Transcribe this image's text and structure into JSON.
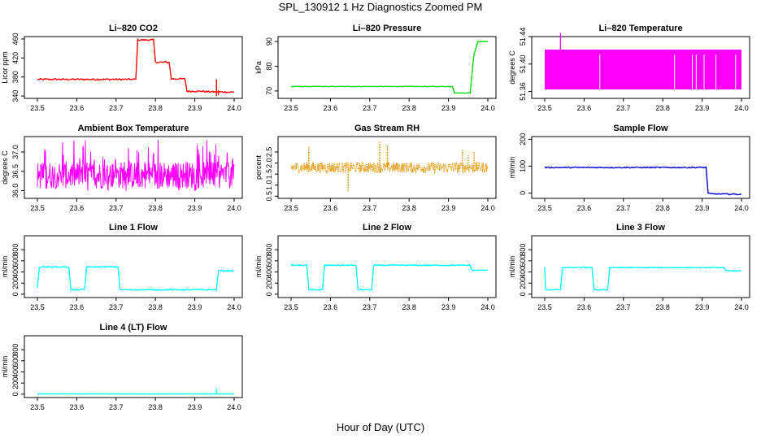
{
  "title": "SPL_130912  1 Hz Diagnostics Zoomed PM",
  "xlabel": "Hour of Day (UTC)",
  "chart_data": [
    {
      "type": "line",
      "title": "Li–820 CO2",
      "ylabel": "Licor ppm",
      "color": "#ff0000",
      "xlim": [
        23.5,
        24.0
      ],
      "ylim": [
        335,
        465
      ],
      "xticks": [
        "23.5",
        "23.6",
        "23.7",
        "23.8",
        "23.9",
        "24.0"
      ],
      "yticks": [
        "340",
        "380",
        "420",
        "460"
      ],
      "series": [
        {
          "x": [
            23.5,
            23.75,
            23.755,
            23.795,
            23.8,
            23.835,
            23.84,
            23.875,
            23.88,
            23.92,
            23.93,
            24.0
          ],
          "y": [
            375,
            375,
            458,
            458,
            411,
            411,
            376,
            376,
            350,
            350,
            349,
            348
          ]
        }
      ],
      "spikes": [
        {
          "x": 23.955,
          "y": [
            340,
            375
          ]
        },
        {
          "x": 23.96,
          "y": [
            352,
            342
          ]
        }
      ],
      "noise": 1.5
    },
    {
      "type": "line",
      "title": "Li–820 Pressure",
      "ylabel": "kPa",
      "color": "#00dd00",
      "xlim": [
        23.5,
        24.0
      ],
      "ylim": [
        67,
        92
      ],
      "xticks": [
        "23.5",
        "23.6",
        "23.7",
        "23.8",
        "23.9",
        "24.0"
      ],
      "yticks": [
        "70",
        "80",
        "90"
      ],
      "series": [
        {
          "x": [
            23.5,
            23.91,
            23.915,
            23.955,
            23.965,
            23.975,
            24.0
          ],
          "y": [
            71.8,
            71.8,
            69.2,
            69.2,
            85,
            90,
            90
          ]
        }
      ],
      "noise": 0.1
    },
    {
      "type": "band",
      "title": "Li–820 Temperature",
      "ylabel": "degrees C",
      "color": "#ff00ff",
      "xlim": [
        23.5,
        24.0
      ],
      "ylim": [
        51.35,
        51.44
      ],
      "xticks": [
        "23.5",
        "23.6",
        "23.7",
        "23.8",
        "23.9",
        "24.0"
      ],
      "yticks": [
        "51.36",
        "51.40",
        "51.44"
      ],
      "band": [
        51.363,
        51.421
      ],
      "spikes": [
        {
          "x": 23.54,
          "y": [
            51.42,
            51.445
          ]
        }
      ],
      "gaps": [
        23.64,
        23.83,
        23.875,
        23.885,
        23.905,
        23.935,
        23.985
      ]
    },
    {
      "type": "noise",
      "title": "Ambient Box Temperature",
      "ylabel": "degrees C",
      "color": "#ff00ff",
      "xlim": [
        23.5,
        24.0
      ],
      "ylim": [
        35.8,
        37.4
      ],
      "xticks": [
        "23.5",
        "23.6",
        "23.7",
        "23.8",
        "23.9",
        "24.0"
      ],
      "yticks": [
        "36.0",
        "36.5",
        "37.0"
      ],
      "range": [
        36.0,
        37.3
      ],
      "center": 36.4,
      "spread": 0.35
    },
    {
      "type": "dotted",
      "title": "Gas Stream RH",
      "ylabel": "percent",
      "color": "#e69500",
      "xlim": [
        23.5,
        24.0
      ],
      "ylim": [
        0.4,
        3.2
      ],
      "xticks": [
        "23.5",
        "23.6",
        "23.7",
        "23.8",
        "23.9",
        "24.0"
      ],
      "yticks": [
        "0.5",
        "1.0",
        "1.5",
        "2.0",
        "2.5"
      ],
      "center": 1.8,
      "spread": 0.25,
      "spikes": [
        {
          "x": 23.545,
          "y": 2.75
        },
        {
          "x": 23.645,
          "y": 0.7
        },
        {
          "x": 23.725,
          "y": 2.95
        },
        {
          "x": 23.745,
          "y": 2.8
        },
        {
          "x": 23.935,
          "y": 2.6
        },
        {
          "x": 23.95,
          "y": 2.35
        },
        {
          "x": 23.965,
          "y": 2.5
        }
      ]
    },
    {
      "type": "line",
      "title": "Sample Flow",
      "ylabel": "ml/min",
      "color": "#0000dd",
      "xlim": [
        23.5,
        24.0
      ],
      "ylim": [
        -20,
        210
      ],
      "xticks": [
        "23.5",
        "23.6",
        "23.7",
        "23.8",
        "23.9",
        "24.0"
      ],
      "yticks": [
        "0",
        "100",
        "200"
      ],
      "series": [
        {
          "x": [
            23.5,
            23.91,
            23.915,
            23.92,
            24.0
          ],
          "y": [
            95,
            95,
            0,
            -3,
            -5
          ]
        }
      ],
      "noise": 2
    },
    {
      "type": "line",
      "title": "Line 1 Flow",
      "ylabel": "ml/min",
      "color": "#00ffff",
      "xlim": [
        23.5,
        24.0
      ],
      "ylim": [
        -60,
        1050
      ],
      "xticks": [
        "23.5",
        "23.6",
        "23.7",
        "23.8",
        "23.9",
        "24.0"
      ],
      "yticks": [
        "0",
        "200",
        "400",
        "600",
        "800"
      ],
      "series": [
        {
          "x": [
            23.5,
            23.505,
            23.58,
            23.585,
            23.62,
            23.625,
            23.705,
            23.71,
            23.955,
            23.96,
            23.965,
            24.0
          ],
          "y": [
            110,
            490,
            490,
            80,
            80,
            490,
            490,
            80,
            80,
            420,
            420,
            420
          ]
        }
      ],
      "noise": 10
    },
    {
      "type": "line",
      "title": "Line 2 Flow",
      "ylabel": "ml/min",
      "color": "#00ffff",
      "xlim": [
        23.5,
        24.0
      ],
      "ylim": [
        -60,
        1050
      ],
      "xticks": [
        "23.5",
        "23.6",
        "23.7",
        "23.8",
        "23.9",
        "24.0"
      ],
      "yticks": [
        "0",
        "200",
        "400",
        "600",
        "800"
      ],
      "series": [
        {
          "x": [
            23.5,
            23.54,
            23.545,
            23.58,
            23.585,
            23.665,
            23.67,
            23.705,
            23.71,
            23.955,
            23.96,
            24.0
          ],
          "y": [
            520,
            520,
            80,
            80,
            520,
            520,
            80,
            80,
            520,
            520,
            430,
            430
          ]
        }
      ],
      "noise": 10
    },
    {
      "type": "line",
      "title": "Line 3 Flow",
      "ylabel": "ml/min",
      "color": "#00ffff",
      "xlim": [
        23.5,
        24.0
      ],
      "ylim": [
        -60,
        1050
      ],
      "xticks": [
        "23.5",
        "23.6",
        "23.7",
        "23.8",
        "23.9",
        "24.0"
      ],
      "yticks": [
        "0",
        "200",
        "400",
        "600",
        "800"
      ],
      "series": [
        {
          "x": [
            23.5,
            23.502,
            23.505,
            23.54,
            23.545,
            23.62,
            23.625,
            23.66,
            23.665,
            23.955,
            23.96,
            24.0
          ],
          "y": [
            480,
            100,
            80,
            80,
            480,
            480,
            80,
            80,
            480,
            480,
            420,
            420
          ]
        }
      ],
      "noise": 8
    },
    {
      "type": "line",
      "title": "Line 4 (LT) Flow",
      "ylabel": "ml/min",
      "color": "#00ffff",
      "xlim": [
        23.5,
        24.0
      ],
      "ylim": [
        -60,
        1050
      ],
      "xticks": [
        "23.5",
        "23.6",
        "23.7",
        "23.8",
        "23.9",
        "24.0"
      ],
      "yticks": [
        "0",
        "200",
        "400",
        "600",
        "800"
      ],
      "series": [
        {
          "x": [
            23.5,
            24.0
          ],
          "y": [
            5,
            5
          ]
        }
      ],
      "spikes": [
        {
          "x": 23.955,
          "y": [
            5,
            100
          ]
        }
      ],
      "noise": 2
    }
  ]
}
